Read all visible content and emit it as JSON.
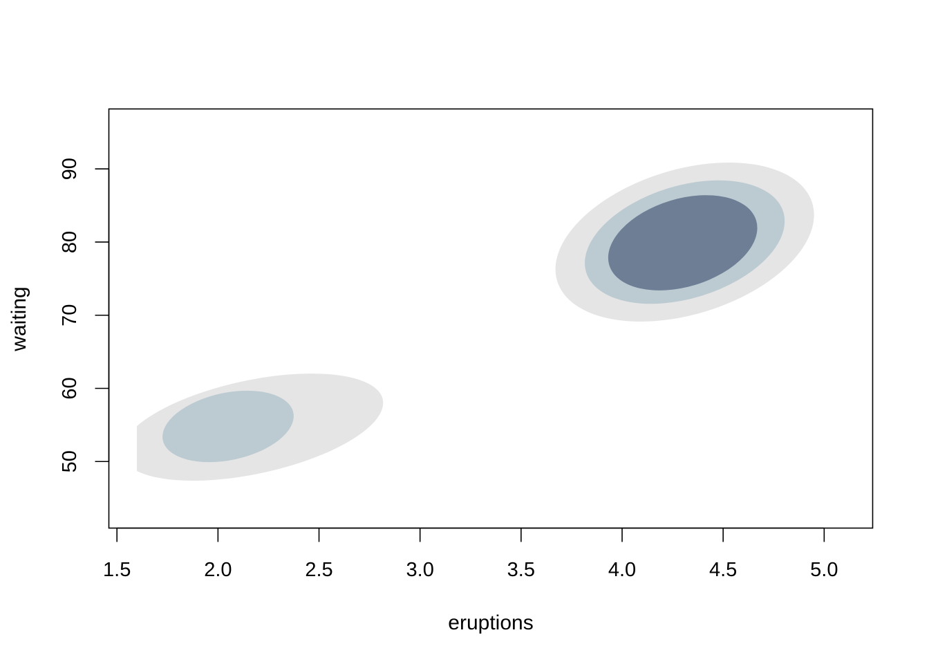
{
  "chart_data": {
    "type": "contour",
    "title": "",
    "xlabel": "eruptions",
    "ylabel": "waiting",
    "xlim": [
      1.46,
      5.24
    ],
    "ylim": [
      40.9,
      98.2
    ],
    "x_ticks": [
      "1.5",
      "2.0",
      "2.5",
      "3.0",
      "3.5",
      "4.0",
      "4.5",
      "5.0"
    ],
    "y_ticks": [
      "50",
      "60",
      "70",
      "80",
      "90"
    ],
    "grid": false,
    "legend": "none",
    "level_colors": [
      "#e5e5e5",
      "#bccbd2",
      "#6d7e95"
    ],
    "regions": [
      {
        "level": 1,
        "shape": "ellipse",
        "center": [
          2.17,
          54.7
        ],
        "semi_axis_x": 0.66,
        "semi_axis_y": 6.4,
        "angle_deg": -12
      },
      {
        "level": 2,
        "shape": "ellipse",
        "center": [
          2.05,
          54.8
        ],
        "semi_axis_x": 0.33,
        "semi_axis_y": 4.6,
        "angle_deg": -12
      },
      {
        "level": 1,
        "shape": "ellipse",
        "center": [
          4.31,
          80.0
        ],
        "semi_axis_x": 0.66,
        "semi_axis_y": 9.9,
        "angle_deg": -17
      },
      {
        "level": 2,
        "shape": "ellipse",
        "center": [
          4.31,
          80.0
        ],
        "semi_axis_x": 0.51,
        "semi_axis_y": 7.7,
        "angle_deg": -17
      },
      {
        "level": 3,
        "shape": "ellipse",
        "center": [
          4.3,
          79.9
        ],
        "semi_axis_x": 0.38,
        "semi_axis_y": 6.0,
        "angle_deg": -17
      }
    ]
  }
}
